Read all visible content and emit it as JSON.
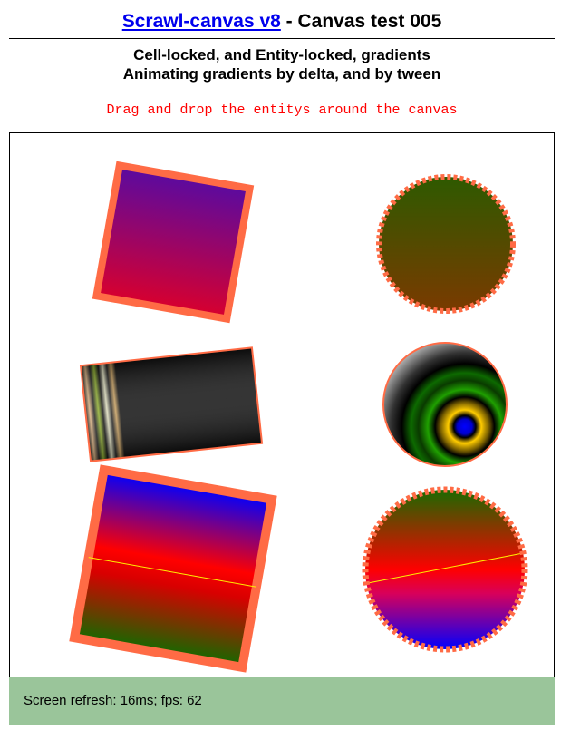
{
  "header": {
    "link_label": "Scrawl-canvas v8",
    "title_rest": " - Canvas test 005",
    "subtitle_line1": "Cell-locked, and Entity-locked, gradients",
    "subtitle_line2": "Animating gradients by delta, and by tween",
    "instruction": "Drag and drop the entitys around the canvas"
  },
  "status": {
    "label": "Screen refresh: 16ms; fps: 62"
  },
  "colors": {
    "entity_stroke": "#ff6b45",
    "status_bg": "#9ac59a",
    "title_link": "#0000ee",
    "instruction": "#ff0000"
  }
}
